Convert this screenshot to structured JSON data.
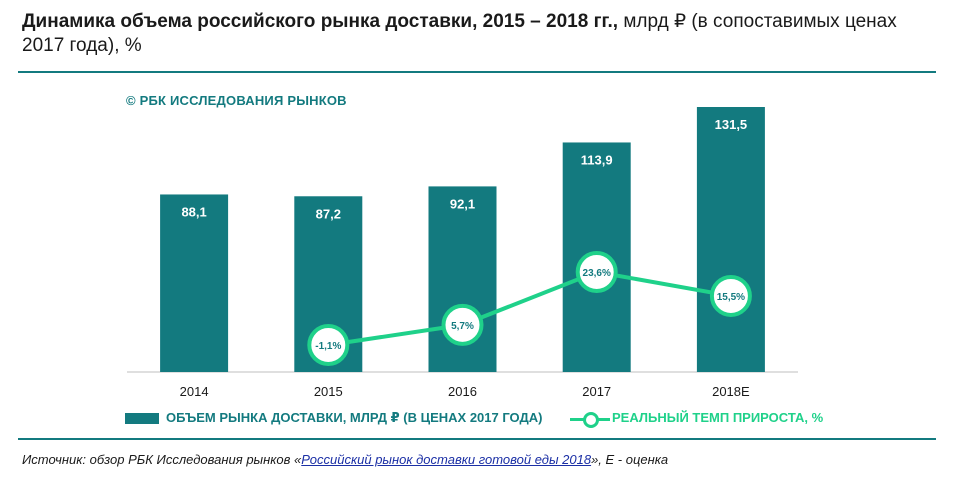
{
  "title": {
    "bold": "Динамика объема российского рынка доставки, 2015 – 2018 гг.,",
    "rest": " млрд ₽ (в сопоставимых ценах 2017 года), %"
  },
  "copyright": "© РБК ИССЛЕДОВАНИЯ РЫНКОВ",
  "legend": {
    "bar_label": "ОБЪЕМ РЫНКА ДОСТАВКИ, МЛРД ₽ (В ЦЕНАХ 2017 ГОДА)",
    "line_label": "РЕАЛЬНЫЙ ТЕМП ПРИРОСТА, %"
  },
  "source": {
    "prefix": "Источник: обзор РБК Исследования рынков «",
    "link": "Российский рынок доставки готовой еды 2018",
    "suffix": "», Е - оценка"
  },
  "colors": {
    "bar": "#137a7f",
    "line": "#1fd18a",
    "accent": "#137a7f"
  },
  "chart_data": {
    "type": "bar",
    "categories": [
      "2014",
      "2015",
      "2016",
      "2017",
      "2018E"
    ],
    "series": [
      {
        "name": "ОБЪЕМ РЫНКА ДОСТАВКИ, МЛРД ₽ (В ЦЕНАХ 2017 ГОДА)",
        "type": "bar",
        "values": [
          88.1,
          87.2,
          92.1,
          113.9,
          131.5
        ],
        "labels": [
          "88,1",
          "87,2",
          "92,1",
          "113,9",
          "131,5"
        ]
      },
      {
        "name": "РЕАЛЬНЫЙ ТЕМП ПРИРОСТА, %",
        "type": "line",
        "values": [
          null,
          -1.1,
          5.7,
          23.6,
          15.5
        ],
        "labels": [
          "",
          "-1,1%",
          "5,7%",
          "23,6%",
          "15,5%"
        ]
      }
    ],
    "ylim": [
      0,
      131.5
    ],
    "y2lim": [
      -5,
      30
    ],
    "grid": false,
    "legend_position": "bottom"
  }
}
